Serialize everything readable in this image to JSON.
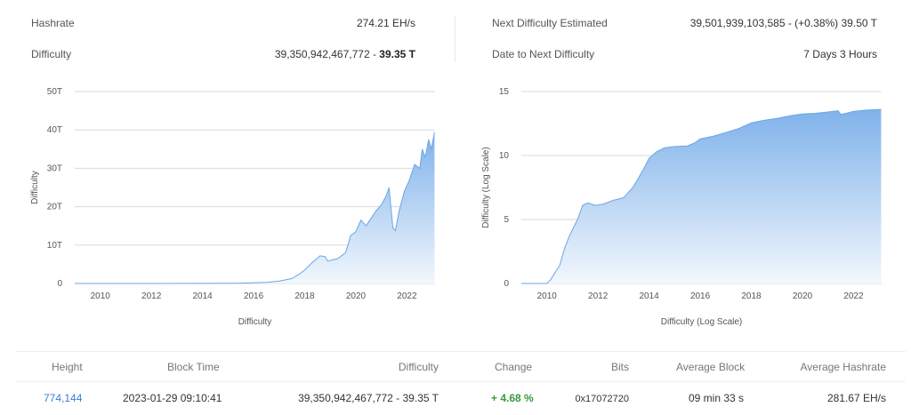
{
  "stats": {
    "hashrate_label": "Hashrate",
    "hashrate_value": "274.21 EH/s",
    "difficulty_label": "Difficulty",
    "difficulty_value": "39,350,942,467,772",
    "difficulty_sep": " - ",
    "difficulty_short": "39.35 T",
    "next_label": "Next Difficulty Estimated",
    "next_value": "39,501,939,103,585 - (+0.38%) 39.50 T",
    "date_label": "Date to Next Difficulty",
    "date_value": "7 Days 3 Hours"
  },
  "chart_data": [
    {
      "type": "area",
      "xlabel": "Difficulty",
      "ylabel": "Difficulty",
      "ylim": [
        0,
        50
      ],
      "yticks": [
        "0",
        "10T",
        "20T",
        "30T",
        "40T",
        "50T"
      ],
      "xlim": [
        2009,
        2023.1
      ],
      "xticks": [
        "2010",
        "2012",
        "2014",
        "2016",
        "2018",
        "2020",
        "2022"
      ],
      "grid": true,
      "x": [
        2009.0,
        2012.0,
        2014.0,
        2015.5,
        2016.5,
        2017.0,
        2017.5,
        2017.8,
        2018.0,
        2018.3,
        2018.6,
        2018.8,
        2018.9,
        2019.0,
        2019.3,
        2019.6,
        2019.8,
        2020.0,
        2020.2,
        2020.4,
        2020.6,
        2020.8,
        2021.0,
        2021.2,
        2021.3,
        2021.45,
        2021.55,
        2021.7,
        2021.9,
        2022.1,
        2022.3,
        2022.5,
        2022.6,
        2022.7,
        2022.75,
        2022.85,
        2022.95,
        2023.08
      ],
      "y": [
        0,
        0.0,
        0.02,
        0.1,
        0.3,
        0.6,
        1.3,
        2.5,
        3.5,
        5.5,
        7.2,
        7.0,
        5.8,
        6.0,
        6.5,
        8.0,
        12.5,
        13.5,
        16.5,
        15.0,
        17.0,
        19.0,
        20.5,
        23.0,
        25.0,
        14.5,
        13.8,
        19.0,
        24.0,
        27.0,
        31.0,
        30.0,
        35.0,
        33.0,
        34.0,
        37.5,
        35.0,
        39.35
      ]
    },
    {
      "type": "area",
      "xlabel": "Difficulty (Log Scale)",
      "ylabel": "Difficulty (Log Scale)",
      "ylim": [
        0,
        15
      ],
      "yticks": [
        "0",
        "5",
        "10",
        "15"
      ],
      "xlim": [
        2009,
        2023.1
      ],
      "xticks": [
        "2010",
        "2012",
        "2014",
        "2016",
        "2018",
        "2020",
        "2022"
      ],
      "grid": true,
      "x": [
        2009.0,
        2010.0,
        2010.15,
        2010.3,
        2010.5,
        2010.7,
        2010.9,
        2011.2,
        2011.4,
        2011.6,
        2011.9,
        2012.2,
        2012.6,
        2013.0,
        2013.4,
        2013.8,
        2014.0,
        2014.3,
        2014.6,
        2015.0,
        2015.5,
        2015.8,
        2016.0,
        2016.5,
        2017.0,
        2017.5,
        2018.0,
        2018.5,
        2019.0,
        2019.5,
        2020.0,
        2020.5,
        2021.0,
        2021.4,
        2021.5,
        2022.0,
        2022.5,
        2023.08
      ],
      "y": [
        0,
        0,
        0.3,
        0.8,
        1.4,
        2.8,
        3.8,
        5.0,
        6.1,
        6.3,
        6.1,
        6.2,
        6.5,
        6.7,
        7.6,
        9.0,
        9.8,
        10.3,
        10.6,
        10.7,
        10.75,
        11.0,
        11.3,
        11.5,
        11.8,
        12.1,
        12.55,
        12.75,
        12.9,
        13.1,
        13.25,
        13.3,
        13.4,
        13.5,
        13.2,
        13.45,
        13.55,
        13.6
      ]
    }
  ],
  "table": {
    "headers": [
      "Height",
      "Block Time",
      "Difficulty",
      "Change",
      "Bits",
      "Average Block",
      "Average Hashrate"
    ],
    "row": {
      "height": "774,144",
      "time": "2023-01-29 09:10:41",
      "difficulty": "39,350,942,467,772 - 39.35 T",
      "change": "+ 4.68 %",
      "bits": "0x17072720",
      "avg_block": "09 min 33 s",
      "avg_hashrate": "281.67 EH/s"
    }
  },
  "colors": {
    "area_top": "#7fb2ea",
    "area_bottom": "#f2f7fd",
    "line": "#6aa6e6",
    "link": "#3b7dd8",
    "positive": "#3a9a3a",
    "grid": "#d9d9d9"
  }
}
